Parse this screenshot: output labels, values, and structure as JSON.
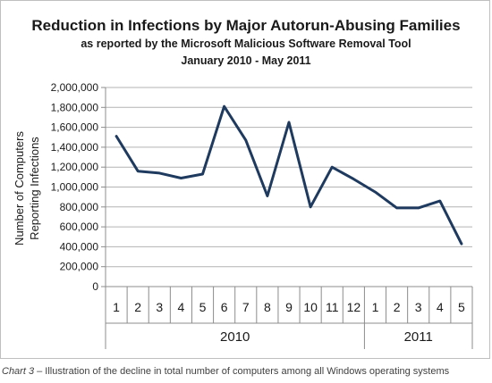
{
  "chart_data": {
    "type": "line",
    "title": "Reduction in Infections by Major Autorun-Abusing Families",
    "subtitle_lines": [
      "as reported by the Microsoft Malicious Software Removal Tool",
      "January 2010 - May 2011"
    ],
    "ylabel_lines": [
      "Number of Computers",
      "Reporting Infections"
    ],
    "ylim": [
      0,
      2000000
    ],
    "yticks": [
      "0",
      "200,000",
      "400,000",
      "600,000",
      "800,000",
      "1,000,000",
      "1,200,000",
      "1,400,000",
      "1,600,000",
      "1,800,000",
      "2,000,000"
    ],
    "categories": [
      "1",
      "2",
      "3",
      "4",
      "5",
      "6",
      "7",
      "8",
      "9",
      "10",
      "11",
      "12",
      "1",
      "2",
      "3",
      "4",
      "5"
    ],
    "year_groups": [
      {
        "label": "2010",
        "count": 12
      },
      {
        "label": "2011",
        "count": 5
      }
    ],
    "values": [
      1510000,
      1160000,
      1140000,
      1090000,
      1130000,
      1810000,
      1470000,
      910000,
      1650000,
      800000,
      1200000,
      1080000,
      950000,
      790000,
      790000,
      860000,
      430000
    ],
    "line_color": "#1f3a5f",
    "grid": true,
    "legend": "none"
  },
  "caption": {
    "lead": "Chart 3 –",
    "text": " Illustration of the decline in total number of computers among all Windows operating systems"
  }
}
